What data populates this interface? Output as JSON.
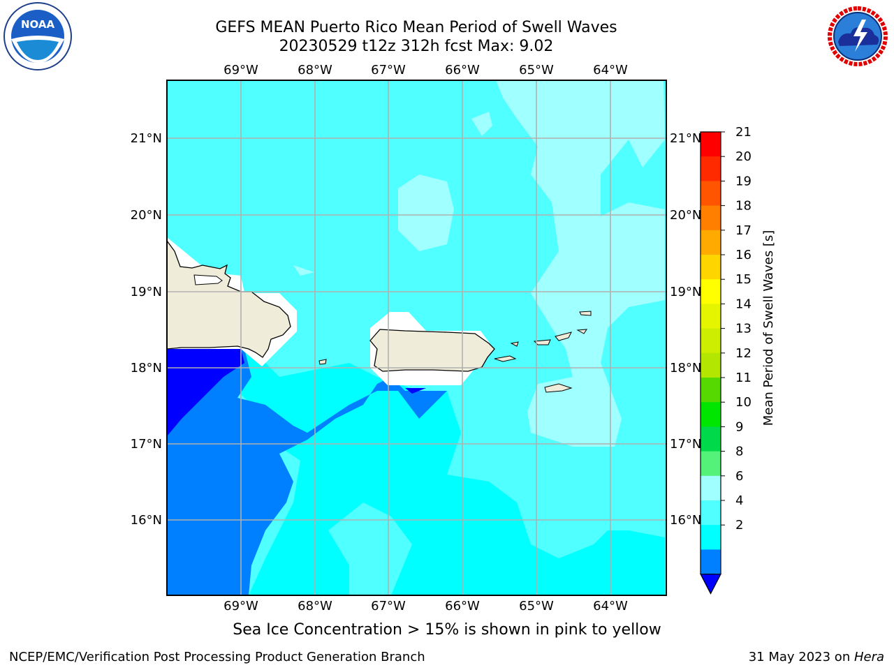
{
  "title": {
    "line1": "GEFS MEAN Puerto Rico Mean Period of Swell Waves",
    "line2": "20230529 t12z 312h fcst   Max: 9.02"
  },
  "logos": {
    "left": {
      "icon": "noaa-logo",
      "text": "NOAA"
    },
    "right": {
      "icon": "nws-logo",
      "ring_text": "NATIONAL WEATHER SERVICE"
    }
  },
  "map": {
    "lon_labels": [
      "69°W",
      "68°W",
      "67°W",
      "66°W",
      "65°W",
      "64°W"
    ],
    "lat_labels": [
      "21°N",
      "20°N",
      "19°N",
      "18°N",
      "17°N",
      "16°N"
    ],
    "grid": true
  },
  "colorbar": {
    "label": "Mean Period of Swell Waves [s]",
    "ticks": [
      "21",
      "20",
      "19",
      "18",
      "17",
      "16",
      "15",
      "14",
      "13",
      "12",
      "11",
      "10",
      "9",
      "8",
      "6",
      "4",
      "2"
    ],
    "colors": [
      "#ff0000",
      "#ff2a00",
      "#ff5500",
      "#ff8000",
      "#ffaa00",
      "#ffd500",
      "#ffff00",
      "#e5f500",
      "#cdee00",
      "#b3e600",
      "#56d900",
      "#00e600",
      "#00d94a",
      "#55f27a",
      "#a0ffff",
      "#50ffff",
      "#00ffff",
      "#0080ff",
      "#0000ff"
    ]
  },
  "note": "Sea Ice Concentration > 15% is shown in pink to yellow",
  "footer": {
    "left": "NCEP/EMC/Verification Post Processing Product Generation Branch",
    "right_prefix": "31 May 2023 on ",
    "right_italic": "Hera"
  }
}
